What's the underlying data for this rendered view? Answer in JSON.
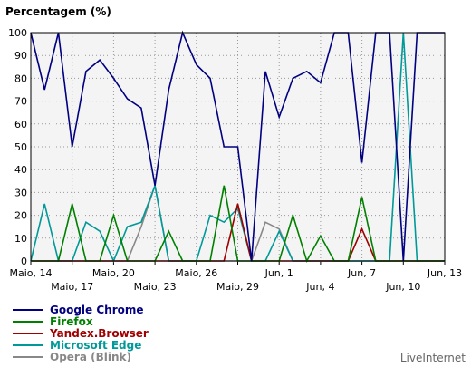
{
  "chart_data": {
    "type": "line",
    "title": "Percentagem (%)",
    "xlabel": "",
    "ylabel": "",
    "ylim": [
      0,
      100
    ],
    "yticks": [
      0,
      10,
      20,
      30,
      40,
      50,
      60,
      70,
      80,
      90,
      100
    ],
    "grid": true,
    "legend_position": "bottom-left",
    "xticks": [
      {
        "label": "Maio, 14",
        "index": 0
      },
      {
        "label": "Maio, 17",
        "index": 3
      },
      {
        "label": "Maio, 20",
        "index": 6
      },
      {
        "label": "Maio, 23",
        "index": 9
      },
      {
        "label": "Maio, 26",
        "index": 12
      },
      {
        "label": "Maio, 29",
        "index": 15
      },
      {
        "label": "Jun, 1",
        "index": 18
      },
      {
        "label": "Jun, 4",
        "index": 21
      },
      {
        "label": "Jun, 7",
        "index": 24
      },
      {
        "label": "Jun, 10",
        "index": 27
      },
      {
        "label": "Jun, 13",
        "index": 30
      }
    ],
    "series": [
      {
        "name": "Google Chrome",
        "color": "#000080",
        "values": [
          100,
          75,
          100,
          50,
          83,
          88,
          80,
          71,
          67,
          33,
          75,
          100,
          86,
          80,
          50,
          50,
          0,
          83,
          63,
          80,
          83,
          78,
          100,
          100,
          43,
          100,
          100,
          0,
          100,
          100,
          100
        ]
      },
      {
        "name": "Firefox",
        "color": "#008000",
        "values": [
          0,
          0,
          0,
          25,
          0,
          0,
          20,
          0,
          0,
          0,
          13,
          0,
          0,
          0,
          33,
          0,
          0,
          0,
          0,
          20,
          0,
          11,
          0,
          0,
          28,
          0,
          0,
          0,
          0,
          0,
          0
        ]
      },
      {
        "name": "Yandex.Browser",
        "color": "#a00000",
        "values": [
          0,
          0,
          0,
          0,
          0,
          0,
          0,
          0,
          0,
          0,
          0,
          0,
          0,
          0,
          0,
          25,
          0,
          0,
          0,
          0,
          0,
          0,
          0,
          0,
          14,
          0,
          0,
          0,
          0,
          0,
          0
        ]
      },
      {
        "name": "Microsoft Edge",
        "color": "#009999",
        "values": [
          0,
          25,
          0,
          0,
          17,
          13,
          0,
          15,
          17,
          33,
          0,
          0,
          0,
          20,
          17,
          23,
          0,
          0,
          13,
          0,
          0,
          0,
          0,
          0,
          0,
          0,
          0,
          100,
          0,
          0,
          0
        ]
      },
      {
        "name": "Opera (Blink)",
        "color": "#888888",
        "values": [
          0,
          0,
          0,
          0,
          0,
          0,
          0,
          0,
          15,
          33,
          0,
          0,
          0,
          0,
          0,
          0,
          0,
          17,
          14,
          0,
          0,
          0,
          0,
          0,
          0,
          0,
          0,
          0,
          0,
          0,
          0
        ]
      }
    ]
  },
  "brand": "LiveInternet"
}
